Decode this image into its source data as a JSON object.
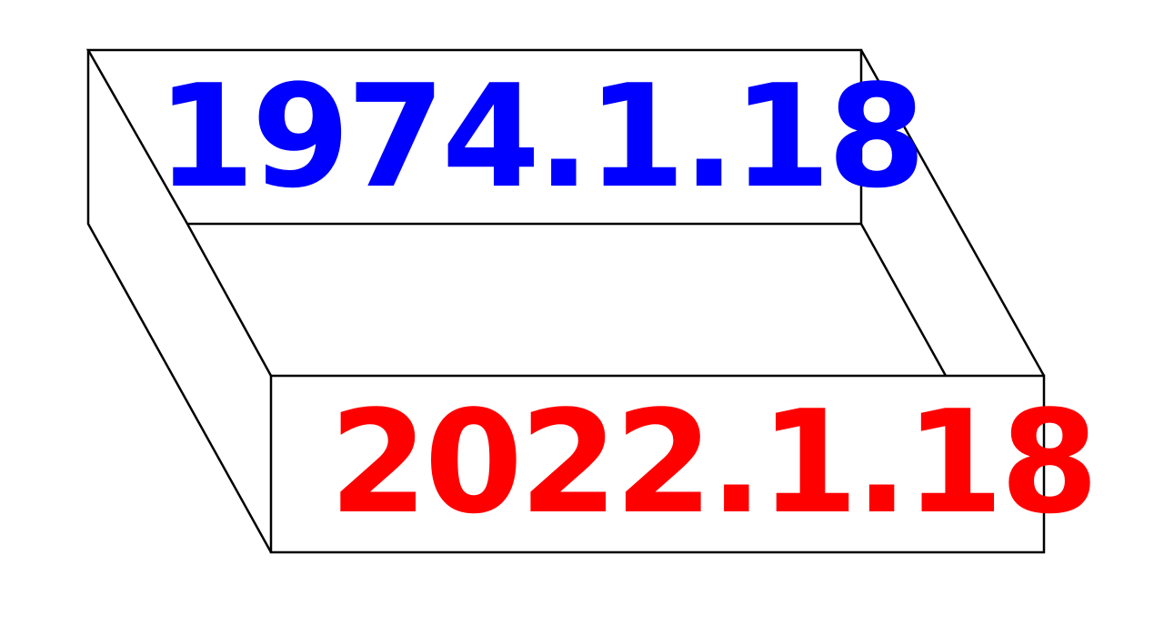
{
  "dates": {
    "top": {
      "text": "1974.1.18",
      "color": "#0000ff"
    },
    "bottom": {
      "text": "2022.1.18",
      "color": "#ff0000"
    }
  },
  "colors": {
    "background": "#ffffff",
    "stroke": "#000000"
  }
}
